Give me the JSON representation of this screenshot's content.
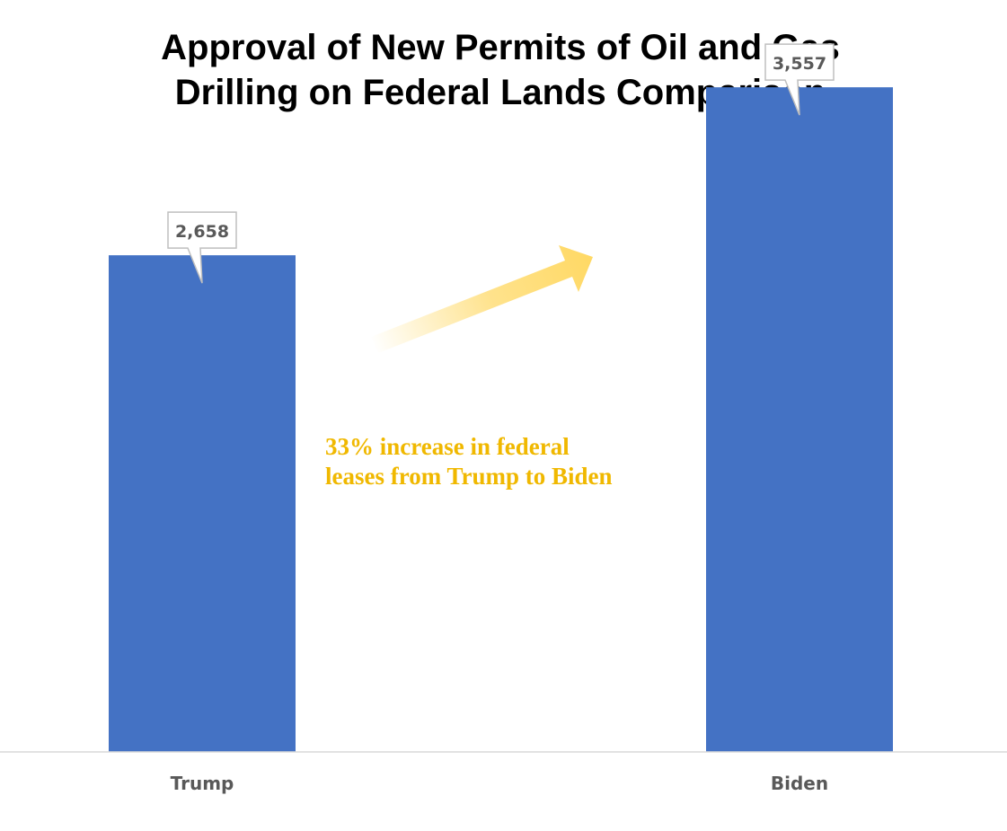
{
  "chart_data": {
    "type": "bar",
    "title_lines": [
      "Approval of New Permits of Oil and Gas",
      "Drilling on Federal Lands Comparison"
    ],
    "categories": [
      "Trump",
      "Biden"
    ],
    "values": [
      2658,
      3557
    ],
    "data_labels": [
      "2,658",
      "3,557"
    ],
    "ylim": [
      0,
      4000
    ],
    "grid": false,
    "legend": "none",
    "annotation": {
      "lines": [
        "33% increase in federal",
        "leases from Trump to Biden"
      ],
      "color": "#F0B800"
    },
    "colors": {
      "bar": "#4472C4",
      "axis": "#D9D9D9",
      "tick_label": "#595959",
      "data_label_border": "#BFBFBF",
      "arrow": "#FFD966"
    }
  }
}
